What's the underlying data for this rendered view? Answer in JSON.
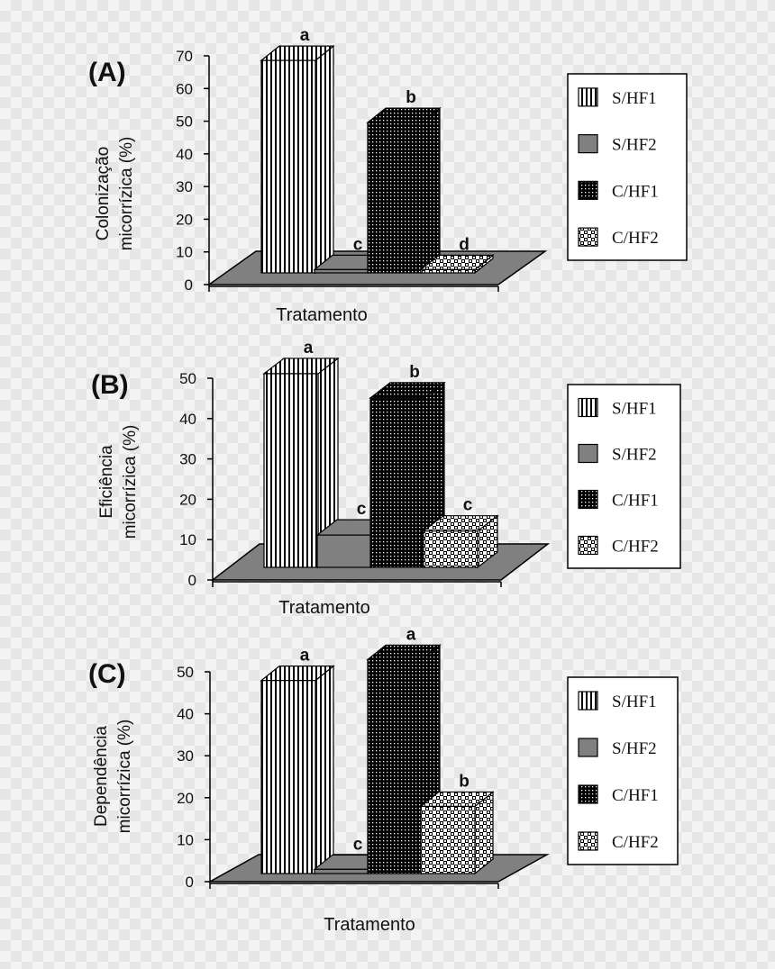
{
  "chart_data": [
    {
      "type": "bar",
      "panel": "(A)",
      "ylabel": [
        "Colonização",
        "micorrízica (%)"
      ],
      "xlabel": "Tratamento",
      "ylim": [
        0,
        70
      ],
      "yticks": [
        0,
        10,
        20,
        30,
        40,
        50,
        60,
        70
      ],
      "categories": [
        "S/HF1",
        "S/HF2",
        "C/HF1",
        "C/HF2"
      ],
      "values": [
        65,
        1,
        46,
        1
      ],
      "significance": [
        "a",
        "c",
        "b",
        "d"
      ]
    },
    {
      "type": "bar",
      "panel": "(B)",
      "ylabel": [
        "Eficiência",
        "micorrízica (%)"
      ],
      "xlabel": "Tratamento",
      "ylim": [
        0,
        50
      ],
      "yticks": [
        0,
        10,
        20,
        30,
        40,
        50
      ],
      "categories": [
        "S/HF1",
        "S/HF2",
        "C/HF1",
        "C/HF2"
      ],
      "values": [
        48,
        8,
        42,
        9
      ],
      "significance": [
        "a",
        "c",
        "b",
        "c"
      ]
    },
    {
      "type": "bar",
      "panel": "(C)",
      "ylabel": [
        "Dependência",
        "micorrízica (%)"
      ],
      "xlabel": "Tratamento",
      "ylim": [
        0,
        50
      ],
      "yticks": [
        0,
        10,
        20,
        30,
        40,
        50
      ],
      "categories": [
        "S/HF1",
        "S/HF2",
        "C/HF1",
        "C/HF2"
      ],
      "values": [
        46,
        1,
        51,
        16
      ],
      "significance": [
        "a",
        "c",
        "a",
        "b"
      ]
    }
  ],
  "colors": {
    "outline": "#000000",
    "floor": "#808080",
    "bar_fill": "#ffffff",
    "s_hf2": "#808080"
  },
  "patterns": [
    "vertical-stripes",
    "solid-gray",
    "dense-dots",
    "checker"
  ]
}
